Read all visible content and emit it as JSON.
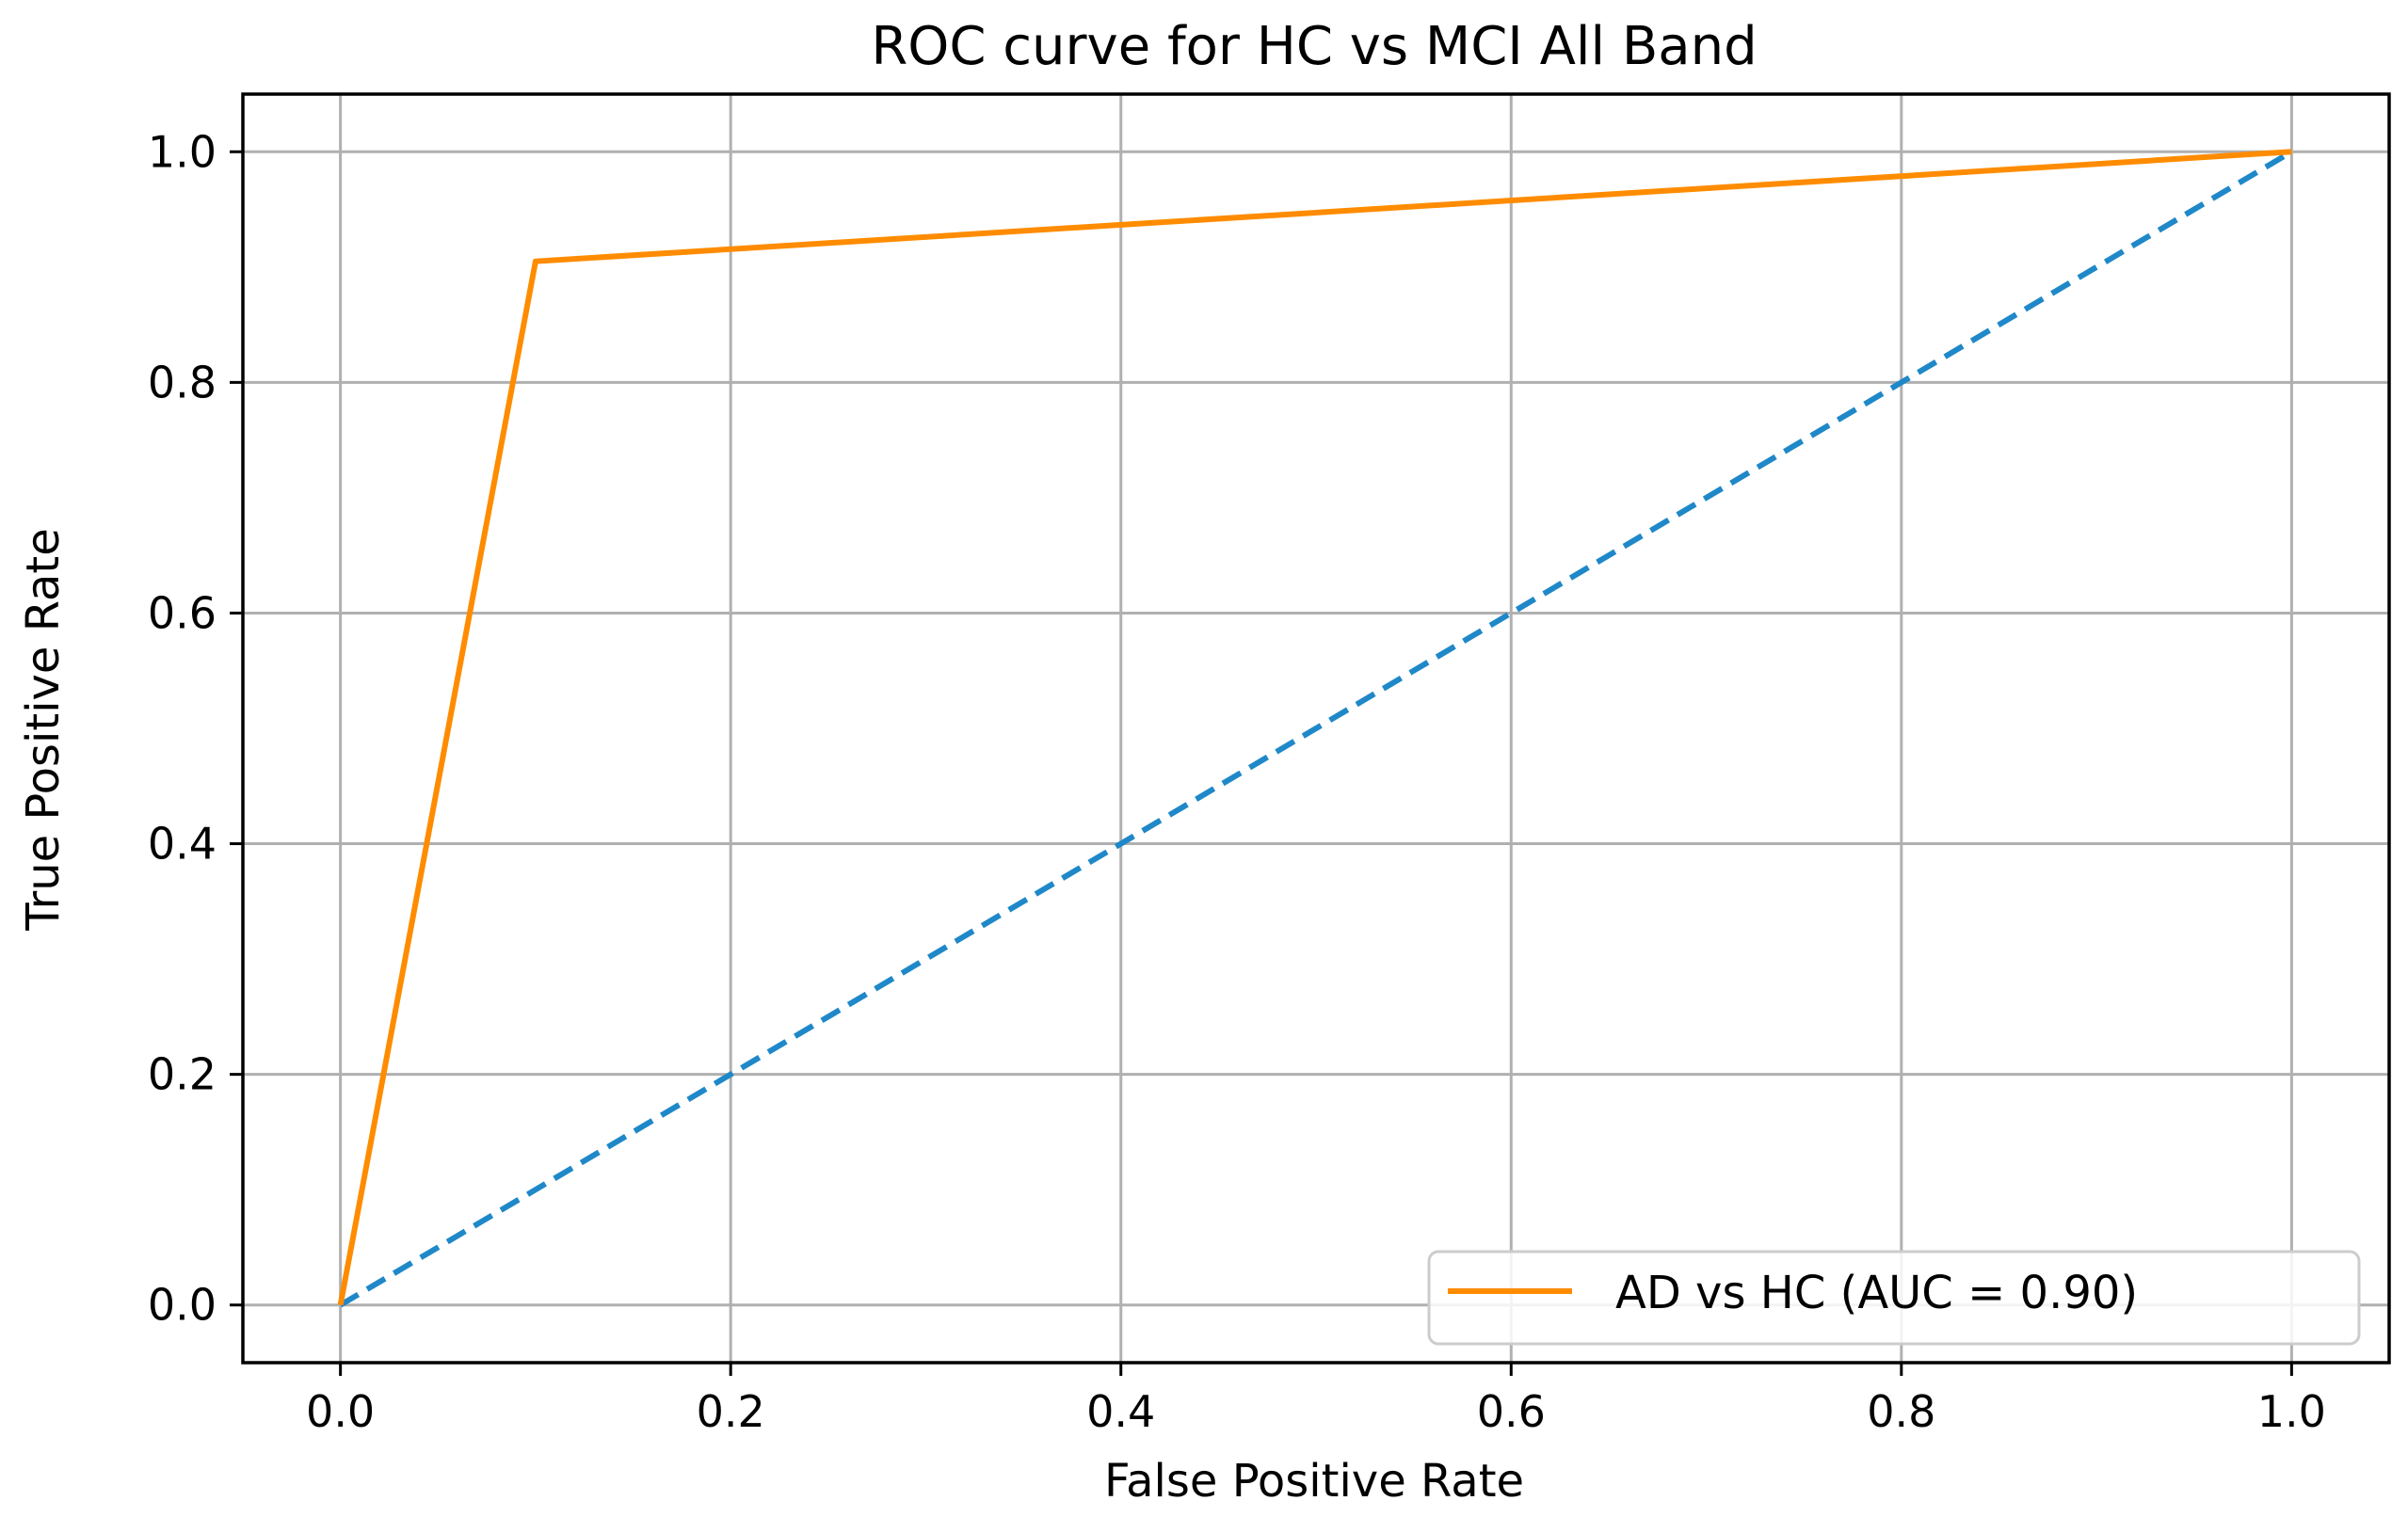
{
  "chart_data": {
    "type": "line",
    "title": "ROC curve for HC vs MCI All Band",
    "xlabel": "False Positive Rate",
    "ylabel": "True Positive Rate",
    "xlim": [
      -0.05,
      1.05
    ],
    "ylim": [
      -0.05,
      1.05
    ],
    "xticks": [
      0.0,
      0.2,
      0.4,
      0.6,
      0.8,
      1.0
    ],
    "yticks": [
      0.0,
      0.2,
      0.4,
      0.6,
      0.8,
      1.0
    ],
    "xtick_labels": [
      "0.0",
      "0.2",
      "0.4",
      "0.6",
      "0.8",
      "1.0"
    ],
    "ytick_labels": [
      "0.0",
      "0.2",
      "0.4",
      "0.6",
      "0.8",
      "1.0"
    ],
    "grid": true,
    "legend_position": "lower-right",
    "series": [
      {
        "name": "AD vs HC (AUC =  0.90)",
        "color": "#ff8c00",
        "style": "solid",
        "x": [
          0.0,
          0.1,
          1.0
        ],
        "y": [
          0.0,
          0.905,
          1.0
        ]
      },
      {
        "color": "#1f88c8",
        "style": "dashed",
        "x": [
          0.0,
          1.0
        ],
        "y": [
          0.0,
          1.0
        ]
      }
    ]
  }
}
